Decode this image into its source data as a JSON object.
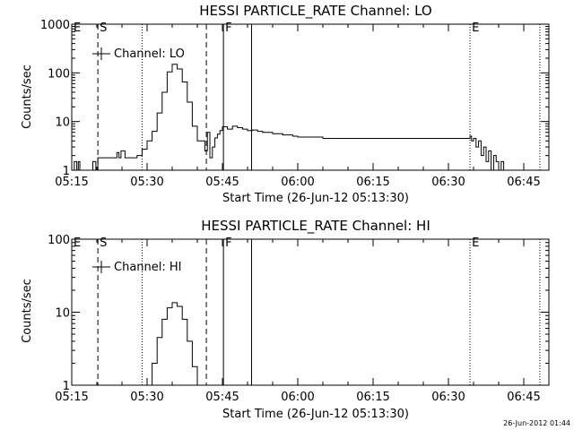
{
  "footer": {
    "timestamp": "26-Jun-2012 01:44"
  },
  "chart_data": [
    {
      "type": "line",
      "title": "HESSI PARTICLE_RATE Channel: LO",
      "xlabel": "Start Time (26-Jun-12 05:13:30)",
      "ylabel": "Counts/sec",
      "yscale": "log",
      "xlim_minutes_from_0515": [
        0,
        95
      ],
      "ylim": [
        1,
        1000
      ],
      "x_ticks": [
        "05:15",
        "05:30",
        "05:45",
        "06:00",
        "06:15",
        "06:30",
        "06:45"
      ],
      "y_ticks": [
        "1",
        "10",
        "100",
        "1000"
      ],
      "legend": {
        "label": "Channel: LO",
        "position": "top-left"
      },
      "markers": [
        {
          "letter": "E",
          "x": 0,
          "style": "none"
        },
        {
          "letter": "S",
          "x": 5.2,
          "style": "dashed"
        },
        {
          "letter": "",
          "x": 14,
          "style": "dotted"
        },
        {
          "letter": "",
          "x": 26.8,
          "style": "dashed"
        },
        {
          "letter": "F",
          "x": 30.2,
          "style": "solid"
        },
        {
          "letter": "",
          "x": 35.8,
          "style": "solid"
        },
        {
          "letter": "E",
          "x": 79.3,
          "style": "dotted"
        },
        {
          "letter": "",
          "x": 93.2,
          "style": "dotted"
        }
      ],
      "series": [
        {
          "x": [
            0,
            0.5,
            1,
            1.3,
            1.6,
            2.0,
            2.5,
            3.5,
            4.2,
            4.8,
            5.2,
            6,
            8,
            9,
            9.4,
            9.8,
            10.6,
            11,
            12,
            13,
            14,
            15,
            16,
            17,
            18,
            19,
            20,
            21,
            22,
            23,
            24,
            25,
            26,
            26.5,
            27,
            27.5,
            28,
            28.5,
            29,
            29.5,
            30,
            31,
            32,
            33,
            34,
            35,
            36,
            37,
            38,
            40,
            42,
            44,
            45,
            50,
            55,
            60,
            65,
            70,
            75,
            79.3,
            79.6,
            80,
            80.5,
            81,
            81.5,
            82,
            82.5,
            83,
            83.5,
            84,
            84.5,
            85,
            85.5,
            86,
            86.5,
            87,
            87.5,
            88
          ],
          "y": [
            1,
            1.5,
            1,
            1.5,
            1,
            1,
            1,
            1,
            1.5,
            1,
            1.8,
            1.8,
            1.8,
            2.3,
            1.8,
            2.5,
            1.8,
            1.8,
            1.8,
            2,
            2.7,
            4,
            6.3,
            15,
            40,
            105,
            150,
            120,
            65,
            25,
            8,
            4,
            4,
            2.5,
            6,
            1.8,
            3,
            4.6,
            5.5,
            6.5,
            7.8,
            7,
            8,
            7.5,
            7,
            6.5,
            6.7,
            6.3,
            6,
            5.6,
            5.3,
            5,
            4.8,
            4.5,
            4.5,
            4.5,
            4.5,
            4.5,
            4.5,
            5,
            4,
            4.5,
            3,
            4,
            2,
            3,
            1.5,
            2.5,
            1,
            2,
            1.5,
            1,
            1.5,
            1,
            1,
            1,
            1,
            1
          ]
        }
      ]
    },
    {
      "type": "line",
      "title": "HESSI PARTICLE_RATE Channel: HI",
      "xlabel": "Start Time (26-Jun-12 05:13:30)",
      "ylabel": "Counts/sec",
      "yscale": "log",
      "xlim_minutes_from_0515": [
        0,
        95
      ],
      "ylim": [
        1,
        100
      ],
      "x_ticks": [
        "05:15",
        "05:30",
        "05:45",
        "06:00",
        "06:15",
        "06:30",
        "06:45"
      ],
      "y_ticks": [
        "1",
        "10",
        "100"
      ],
      "legend": {
        "label": "Channel: HI",
        "position": "top-left"
      },
      "markers": [
        {
          "letter": "E",
          "x": 0,
          "style": "none"
        },
        {
          "letter": "S",
          "x": 5.2,
          "style": "dashed"
        },
        {
          "letter": "",
          "x": 14,
          "style": "dotted"
        },
        {
          "letter": "",
          "x": 26.8,
          "style": "dashed"
        },
        {
          "letter": "F",
          "x": 30.2,
          "style": "solid"
        },
        {
          "letter": "",
          "x": 35.8,
          "style": "solid"
        },
        {
          "letter": "E",
          "x": 79.3,
          "style": "dotted"
        },
        {
          "letter": "",
          "x": 93.2,
          "style": "dotted"
        }
      ],
      "series": [
        {
          "x": [
            15,
            16,
            17,
            18,
            19,
            20,
            21,
            22,
            23,
            24,
            25
          ],
          "y": [
            1,
            2,
            4.5,
            8,
            11.5,
            13.5,
            12,
            8,
            4,
            1.8,
            1
          ]
        }
      ]
    }
  ]
}
